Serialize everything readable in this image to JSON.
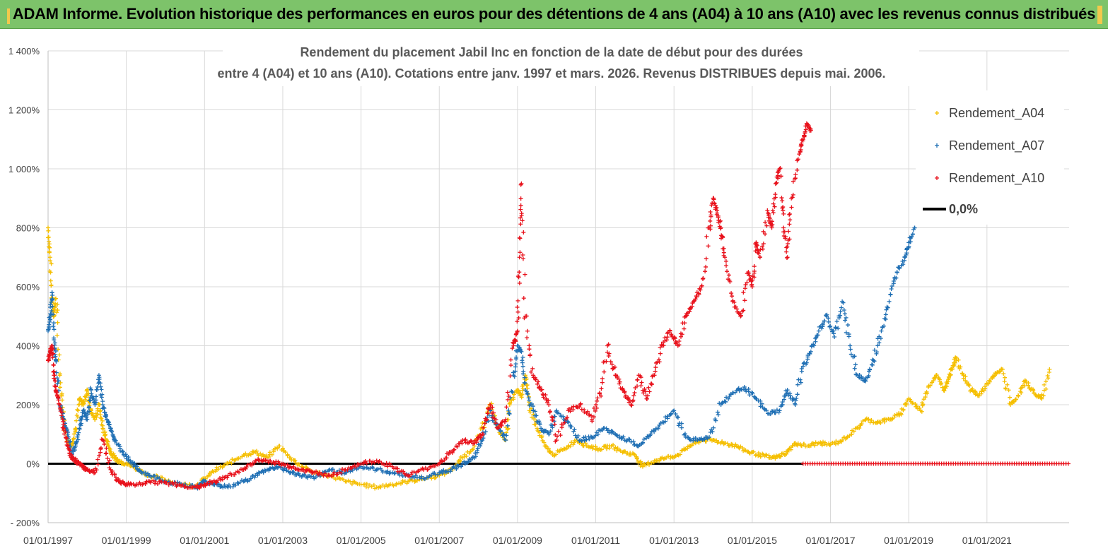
{
  "banner": {
    "title": "ADAM Informe. Evolution historique des performances en euros pour des détentions de 4 ans (A04) à 10 ans (A10) avec les revenus connus distribués"
  },
  "colors": {
    "banner_bg": "#7dc36a",
    "a04": "#f5bf00",
    "a07": "#1f6fb4",
    "a10": "#e8111b",
    "zero_line": "#000000",
    "grid": "#d9d9d9"
  },
  "chart_data": {
    "type": "scatter",
    "title_line1": "Rendement du placement Jabil Inc en fonction de la date de début pour des durées",
    "title_line2": "entre 4 (A04) et 10 ans (A10). Cotations entre janv. 1997 et mars. 2026. Revenus DISTRIBUES depuis mai. 2006.",
    "x_unit": "year",
    "xlim": [
      1997.0,
      2023.1
    ],
    "ylim": [
      -200,
      1400
    ],
    "y_ticks": [
      -200,
      0,
      200,
      400,
      600,
      800,
      1000,
      1200,
      1400
    ],
    "y_tick_labels": [
      "- 200%",
      "0%",
      "200%",
      "400%",
      "600%",
      "800%",
      "1 000%",
      "1 200%",
      "1 400%"
    ],
    "x_tick_labels": [
      "01/01/1997",
      "01/01/1999",
      "01/01/2001",
      "01/01/2003",
      "01/01/2005",
      "01/01/2007",
      "01/01/2009",
      "01/01/2011",
      "01/01/2013",
      "01/01/2015",
      "01/01/2017",
      "01/01/2019",
      "01/01/2021"
    ],
    "x_ticks": [
      1997,
      1999,
      2001,
      2003,
      2005,
      2007,
      2009,
      2011,
      2013,
      2015,
      2017,
      2019,
      2021
    ],
    "grid": true,
    "legend_position": "top-right",
    "legend": [
      "Rendement_A04",
      "Rendement_A07",
      "Rendement_A10",
      "0,0%"
    ],
    "series": [
      {
        "name": "Rendement_A04",
        "x": [
          1997.0,
          1997.05,
          1997.1,
          1997.15,
          1997.2,
          1997.3,
          1997.4,
          1997.5,
          1997.6,
          1997.7,
          1997.8,
          1997.9,
          1998.0,
          1998.1,
          1998.2,
          1998.3,
          1998.4,
          1998.5,
          1998.6,
          1998.7,
          1998.8,
          1999.0,
          1999.3,
          1999.6,
          2000.0,
          2000.4,
          2000.8,
          2001.0,
          2001.3,
          2001.6,
          2002.0,
          2002.3,
          2002.6,
          2002.9,
          2003.2,
          2003.5,
          2003.8,
          2004.2,
          2004.6,
          2005.0,
          2005.4,
          2005.8,
          2006.2,
          2006.6,
          2007.0,
          2007.3,
          2007.6,
          2007.9,
          2008.1,
          2008.3,
          2008.5,
          2008.7,
          2008.8,
          2009.0,
          2009.1,
          2009.2,
          2009.3,
          2009.5,
          2009.7,
          2009.9,
          2010.2,
          2010.5,
          2010.8,
          2011.1,
          2011.4,
          2011.7,
          2012.0,
          2012.2,
          2012.5,
          2012.8,
          2013.1,
          2013.4,
          2013.7,
          2014.0,
          2014.3,
          2014.6,
          2014.9,
          2015.2,
          2015.5,
          2015.7,
          2015.9,
          2016.1,
          2016.4,
          2016.7,
          2017.0,
          2017.3,
          2017.6,
          2017.9,
          2018.2,
          2018.5,
          2018.8,
          2019.0,
          2019.3,
          2019.5,
          2019.7,
          2019.9,
          2020.0,
          2020.1,
          2020.2,
          2020.4,
          2020.6,
          2020.8,
          2021.0,
          2021.2,
          2021.4,
          2021.6,
          2021.8,
          2022.0,
          2022.2,
          2022.4,
          2022.6
        ],
        "y": [
          800,
          700,
          550,
          500,
          560,
          300,
          150,
          80,
          60,
          120,
          220,
          200,
          250,
          180,
          150,
          200,
          120,
          80,
          40,
          20,
          10,
          0,
          -20,
          -40,
          -55,
          -70,
          -75,
          -50,
          -20,
          0,
          30,
          40,
          20,
          60,
          20,
          -10,
          -30,
          -40,
          -60,
          -70,
          -80,
          -70,
          -60,
          -50,
          -40,
          -20,
          20,
          60,
          120,
          200,
          120,
          80,
          200,
          250,
          230,
          300,
          200,
          120,
          60,
          30,
          50,
          80,
          60,
          50,
          60,
          40,
          30,
          -10,
          10,
          20,
          30,
          60,
          80,
          80,
          70,
          60,
          40,
          30,
          20,
          25,
          40,
          70,
          60,
          70,
          65,
          80,
          110,
          150,
          140,
          150,
          170,
          220,
          180,
          260,
          300,
          250,
          280,
          320,
          360,
          300,
          250,
          230,
          270,
          300,
          320,
          200,
          230,
          280,
          240,
          220,
          320
        ]
      },
      {
        "name": "Rendement_A07",
        "x": [
          1997.0,
          1997.05,
          1997.1,
          1997.15,
          1997.2,
          1997.3,
          1997.4,
          1997.5,
          1997.6,
          1997.7,
          1997.8,
          1997.9,
          1998.0,
          1998.1,
          1998.2,
          1998.3,
          1998.4,
          1998.5,
          1998.6,
          1998.7,
          1998.9,
          1999.1,
          1999.3,
          1999.6,
          2000.0,
          2000.4,
          2000.8,
          2001.0,
          2001.3,
          2001.6,
          2002.0,
          2002.3,
          2002.6,
          2002.9,
          2003.2,
          2003.5,
          2003.8,
          2004.2,
          2004.6,
          2005.0,
          2005.4,
          2005.8,
          2006.2,
          2006.6,
          2007.0,
          2007.3,
          2007.6,
          2007.9,
          2008.1,
          2008.3,
          2008.5,
          2008.7,
          2008.9,
          2009.0,
          2009.1,
          2009.2,
          2009.4,
          2009.6,
          2009.8,
          2010.0,
          2010.3,
          2010.6,
          2010.9,
          2011.2,
          2011.5,
          2011.8,
          2012.1,
          2012.4,
          2012.7,
          2013.0,
          2013.3,
          2013.6,
          2013.9,
          2014.2,
          2014.5,
          2014.8,
          2015.1,
          2015.4,
          2015.7,
          2015.9,
          2016.1,
          2016.3,
          2016.5,
          2016.7,
          2016.9,
          2017.1,
          2017.3,
          2017.5,
          2017.7,
          2017.9,
          2018.1,
          2018.3,
          2018.5,
          2018.7,
          2018.9,
          2019.0,
          2019.15
        ],
        "y": [
          450,
          500,
          580,
          420,
          350,
          200,
          150,
          100,
          30,
          60,
          120,
          180,
          150,
          250,
          200,
          300,
          200,
          150,
          120,
          80,
          40,
          10,
          -20,
          -40,
          -60,
          -70,
          -80,
          -60,
          -70,
          -80,
          -60,
          -40,
          -20,
          -10,
          -30,
          -40,
          -50,
          -20,
          -30,
          -10,
          -20,
          -30,
          -40,
          -50,
          -30,
          -20,
          0,
          20,
          80,
          180,
          120,
          80,
          300,
          400,
          380,
          250,
          180,
          120,
          100,
          180,
          140,
          80,
          90,
          120,
          100,
          80,
          60,
          100,
          140,
          180,
          90,
          80,
          90,
          200,
          240,
          260,
          220,
          170,
          180,
          250,
          200,
          330,
          380,
          450,
          500,
          430,
          550,
          400,
          300,
          280,
          350,
          450,
          550,
          650,
          700,
          750,
          800
        ]
      },
      {
        "name": "Rendement_A10",
        "x": [
          1997.0,
          1997.05,
          1997.1,
          1997.15,
          1997.2,
          1997.3,
          1997.4,
          1997.5,
          1997.6,
          1997.7,
          1997.8,
          1997.9,
          1998.0,
          1998.2,
          1998.4,
          1998.6,
          1998.8,
          1999.0,
          1999.3,
          1999.6,
          2000.0,
          2000.4,
          2000.8,
          2001.0,
          2001.3,
          2001.6,
          2002.0,
          2002.3,
          2002.6,
          2002.9,
          2003.2,
          2003.5,
          2003.8,
          2004.2,
          2004.6,
          2005.0,
          2005.4,
          2005.8,
          2006.2,
          2006.6,
          2007.0,
          2007.3,
          2007.6,
          2007.9,
          2008.1,
          2008.3,
          2008.5,
          2008.7,
          2008.9,
          2009.0,
          2009.05,
          2009.1,
          2009.2,
          2009.4,
          2009.6,
          2009.8,
          2010.0,
          2010.3,
          2010.6,
          2010.9,
          2011.1,
          2011.3,
          2011.5,
          2011.7,
          2011.9,
          2012.1,
          2012.3,
          2012.5,
          2012.7,
          2012.9,
          2013.1,
          2013.3,
          2013.5,
          2013.7,
          2013.9,
          2014.0,
          2014.1,
          2014.2,
          2014.3,
          2014.5,
          2014.7,
          2014.9,
          2015.0,
          2015.1,
          2015.2,
          2015.4,
          2015.5,
          2015.6,
          2015.7,
          2015.8,
          2015.9,
          2016.0,
          2016.2,
          2016.3,
          2016.4,
          2016.5
        ],
        "y": [
          350,
          380,
          400,
          300,
          250,
          200,
          120,
          60,
          20,
          10,
          0,
          -10,
          -20,
          -30,
          80,
          -20,
          -60,
          -70,
          -70,
          -60,
          -65,
          -75,
          -80,
          -70,
          -60,
          -40,
          -20,
          10,
          10,
          0,
          -10,
          -20,
          -30,
          -40,
          -20,
          0,
          10,
          -10,
          -40,
          -20,
          0,
          40,
          80,
          70,
          100,
          200,
          120,
          150,
          400,
          450,
          700,
          950,
          500,
          300,
          250,
          200,
          80,
          180,
          200,
          150,
          240,
          400,
          300,
          250,
          200,
          300,
          220,
          300,
          400,
          450,
          400,
          500,
          550,
          600,
          800,
          900,
          850,
          800,
          700,
          550,
          500,
          650,
          600,
          750,
          700,
          850,
          800,
          950,
          1000,
          800,
          700,
          900,
          1050,
          1100,
          1150,
          1130
        ]
      }
    ]
  }
}
